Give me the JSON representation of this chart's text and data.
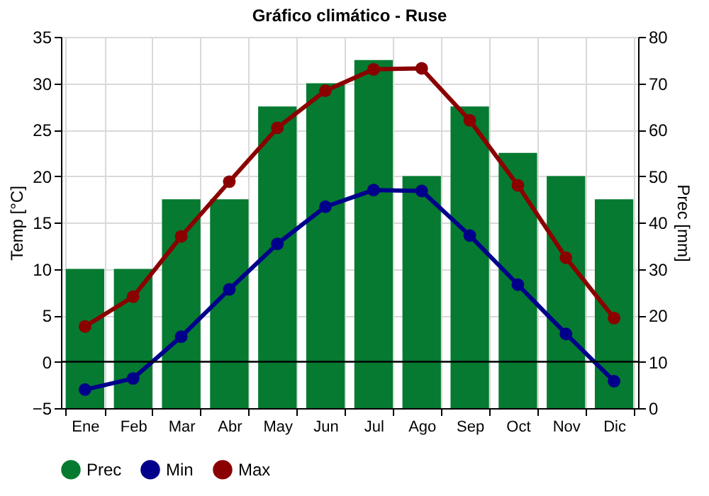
{
  "chart_data": {
    "type": "line",
    "title": "Gráfico climático - Ruse",
    "ylabel": "Temp [°C]",
    "y2label": "Prec [mm]",
    "categories": [
      "Ene",
      "Feb",
      "Mar",
      "Abr",
      "May",
      "Jun",
      "Jul",
      "Ago",
      "Sep",
      "Oct",
      "Nov",
      "Dic"
    ],
    "series": [
      {
        "name": "Prec",
        "type": "bar",
        "axis": "y2",
        "color": "#057a30",
        "values": [
          30,
          30,
          45,
          45,
          65,
          70,
          75,
          50,
          65,
          55,
          50,
          45
        ]
      },
      {
        "name": "Min",
        "color": "#00008b",
        "values": [
          -3,
          -1.8,
          2.7,
          7.8,
          12.7,
          16.7,
          18.5,
          18.4,
          13.6,
          8.3,
          3,
          -2.1
        ]
      },
      {
        "name": "Max",
        "color": "#8b0000",
        "values": [
          3.8,
          7,
          13.5,
          19.4,
          25.2,
          29.2,
          31.5,
          31.6,
          26,
          19,
          11.2,
          4.7
        ]
      }
    ],
    "ylim": [
      -5,
      35
    ],
    "yticks": [
      -5,
      0,
      5,
      10,
      15,
      20,
      25,
      30,
      35
    ],
    "y2lim": [
      0,
      80
    ],
    "y2ticks": [
      0,
      10,
      20,
      30,
      40,
      50,
      60,
      70,
      80
    ],
    "ref_lines": [
      {
        "axis": "y",
        "value": 0,
        "color": "#000000"
      }
    ],
    "grid": true,
    "legend": "bottom",
    "marker": "circle",
    "line_style": "solid"
  }
}
